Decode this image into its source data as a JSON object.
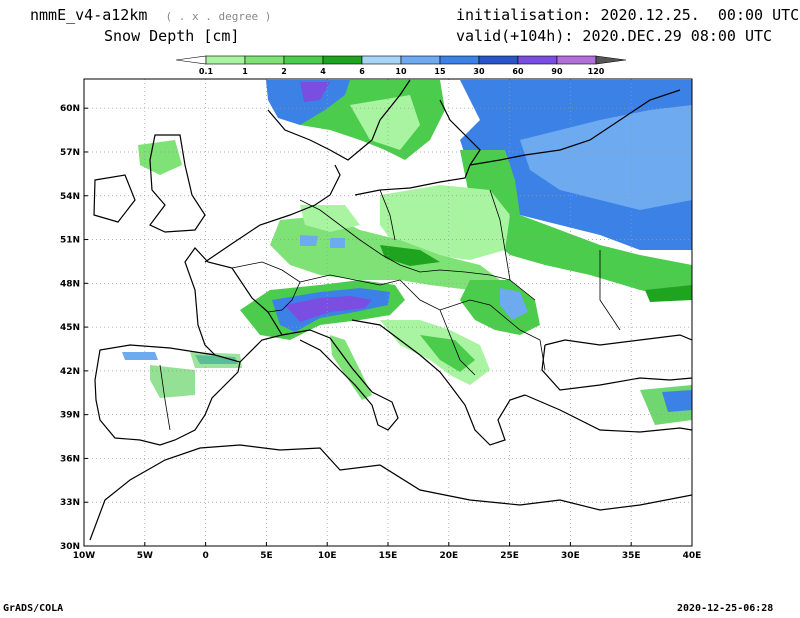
{
  "header": {
    "model": "nmmE_v4-a12km",
    "grid_note": "( . x . degree )",
    "variable": "Snow Depth [cm]",
    "initialisation": "initialisation: 2020.12.25.  00:00 UTC",
    "valid": "valid(+104h): 2020.DEC.29 08:00 UTC"
  },
  "colorbar": {
    "levels": [
      "0.1",
      "1",
      "2",
      "4",
      "6",
      "10",
      "15",
      "30",
      "60",
      "90",
      "120"
    ],
    "colors": [
      "#ffffff",
      "#a8f4a0",
      "#7ee276",
      "#4ccc4c",
      "#1ea41e",
      "#a8d4f8",
      "#6eaaf0",
      "#3c82e6",
      "#2856c8",
      "#7a4ee0",
      "#b070d8",
      "#555555"
    ]
  },
  "map": {
    "lon_labels": [
      "10W",
      "5W",
      "0",
      "5E",
      "10E",
      "15E",
      "20E",
      "25E",
      "30E",
      "35E",
      "40E"
    ],
    "lat_labels": [
      "30N",
      "33N",
      "36N",
      "39N",
      "42N",
      "45N",
      "48N",
      "51N",
      "54N",
      "57N",
      "60N"
    ],
    "lon_range": [
      -10,
      40
    ],
    "lat_range": [
      30,
      62
    ],
    "grid": true,
    "land_outline_color": "#000000",
    "snow_colors": {
      "light": "#a8f4a0",
      "medium": "#4ccc4c",
      "dark": "#1ea41e",
      "blue_light": "#a8d4f8",
      "blue": "#3c82e6",
      "blue_dark": "#2856c8",
      "purple": "#7a4ee0"
    }
  },
  "footer": {
    "left": "GrADS/COLA",
    "right": "2020-12-25-06:28"
  }
}
